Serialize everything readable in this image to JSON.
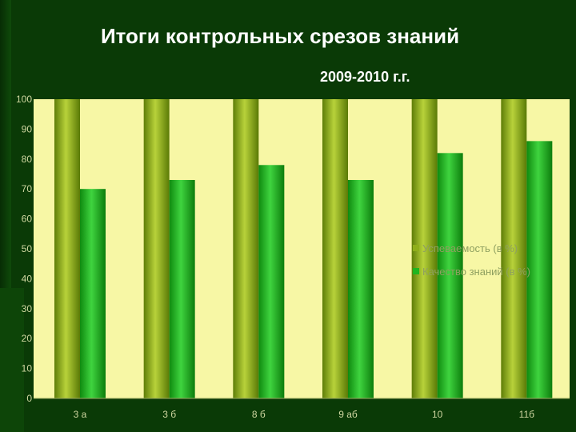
{
  "slide": {
    "title": "Итоги контрольных срезов знаний",
    "subtitle": "2009-2010 г.г."
  },
  "colors": {
    "background": "#0a3a06",
    "plot_area": "#f7f7a5",
    "series1": "#8fae1a",
    "series2": "#1fb51f"
  },
  "chart_data": {
    "type": "bar",
    "title": "",
    "xlabel": "",
    "ylabel": "",
    "categories": [
      "3 а",
      "3 б",
      "8 б",
      "9 аб",
      "10",
      "11б"
    ],
    "ylim": [
      0,
      100
    ],
    "yticks": [
      0,
      10,
      20,
      30,
      40,
      50,
      60,
      70,
      80,
      90,
      100
    ],
    "grid": false,
    "legend_position": "right",
    "series": [
      {
        "name": "Успеваемость (в %)",
        "values": [
          100,
          100,
          100,
          100,
          100,
          100
        ]
      },
      {
        "name": "Качество знаний (в %)",
        "values": [
          70,
          73,
          78,
          73,
          82,
          86
        ]
      }
    ]
  }
}
